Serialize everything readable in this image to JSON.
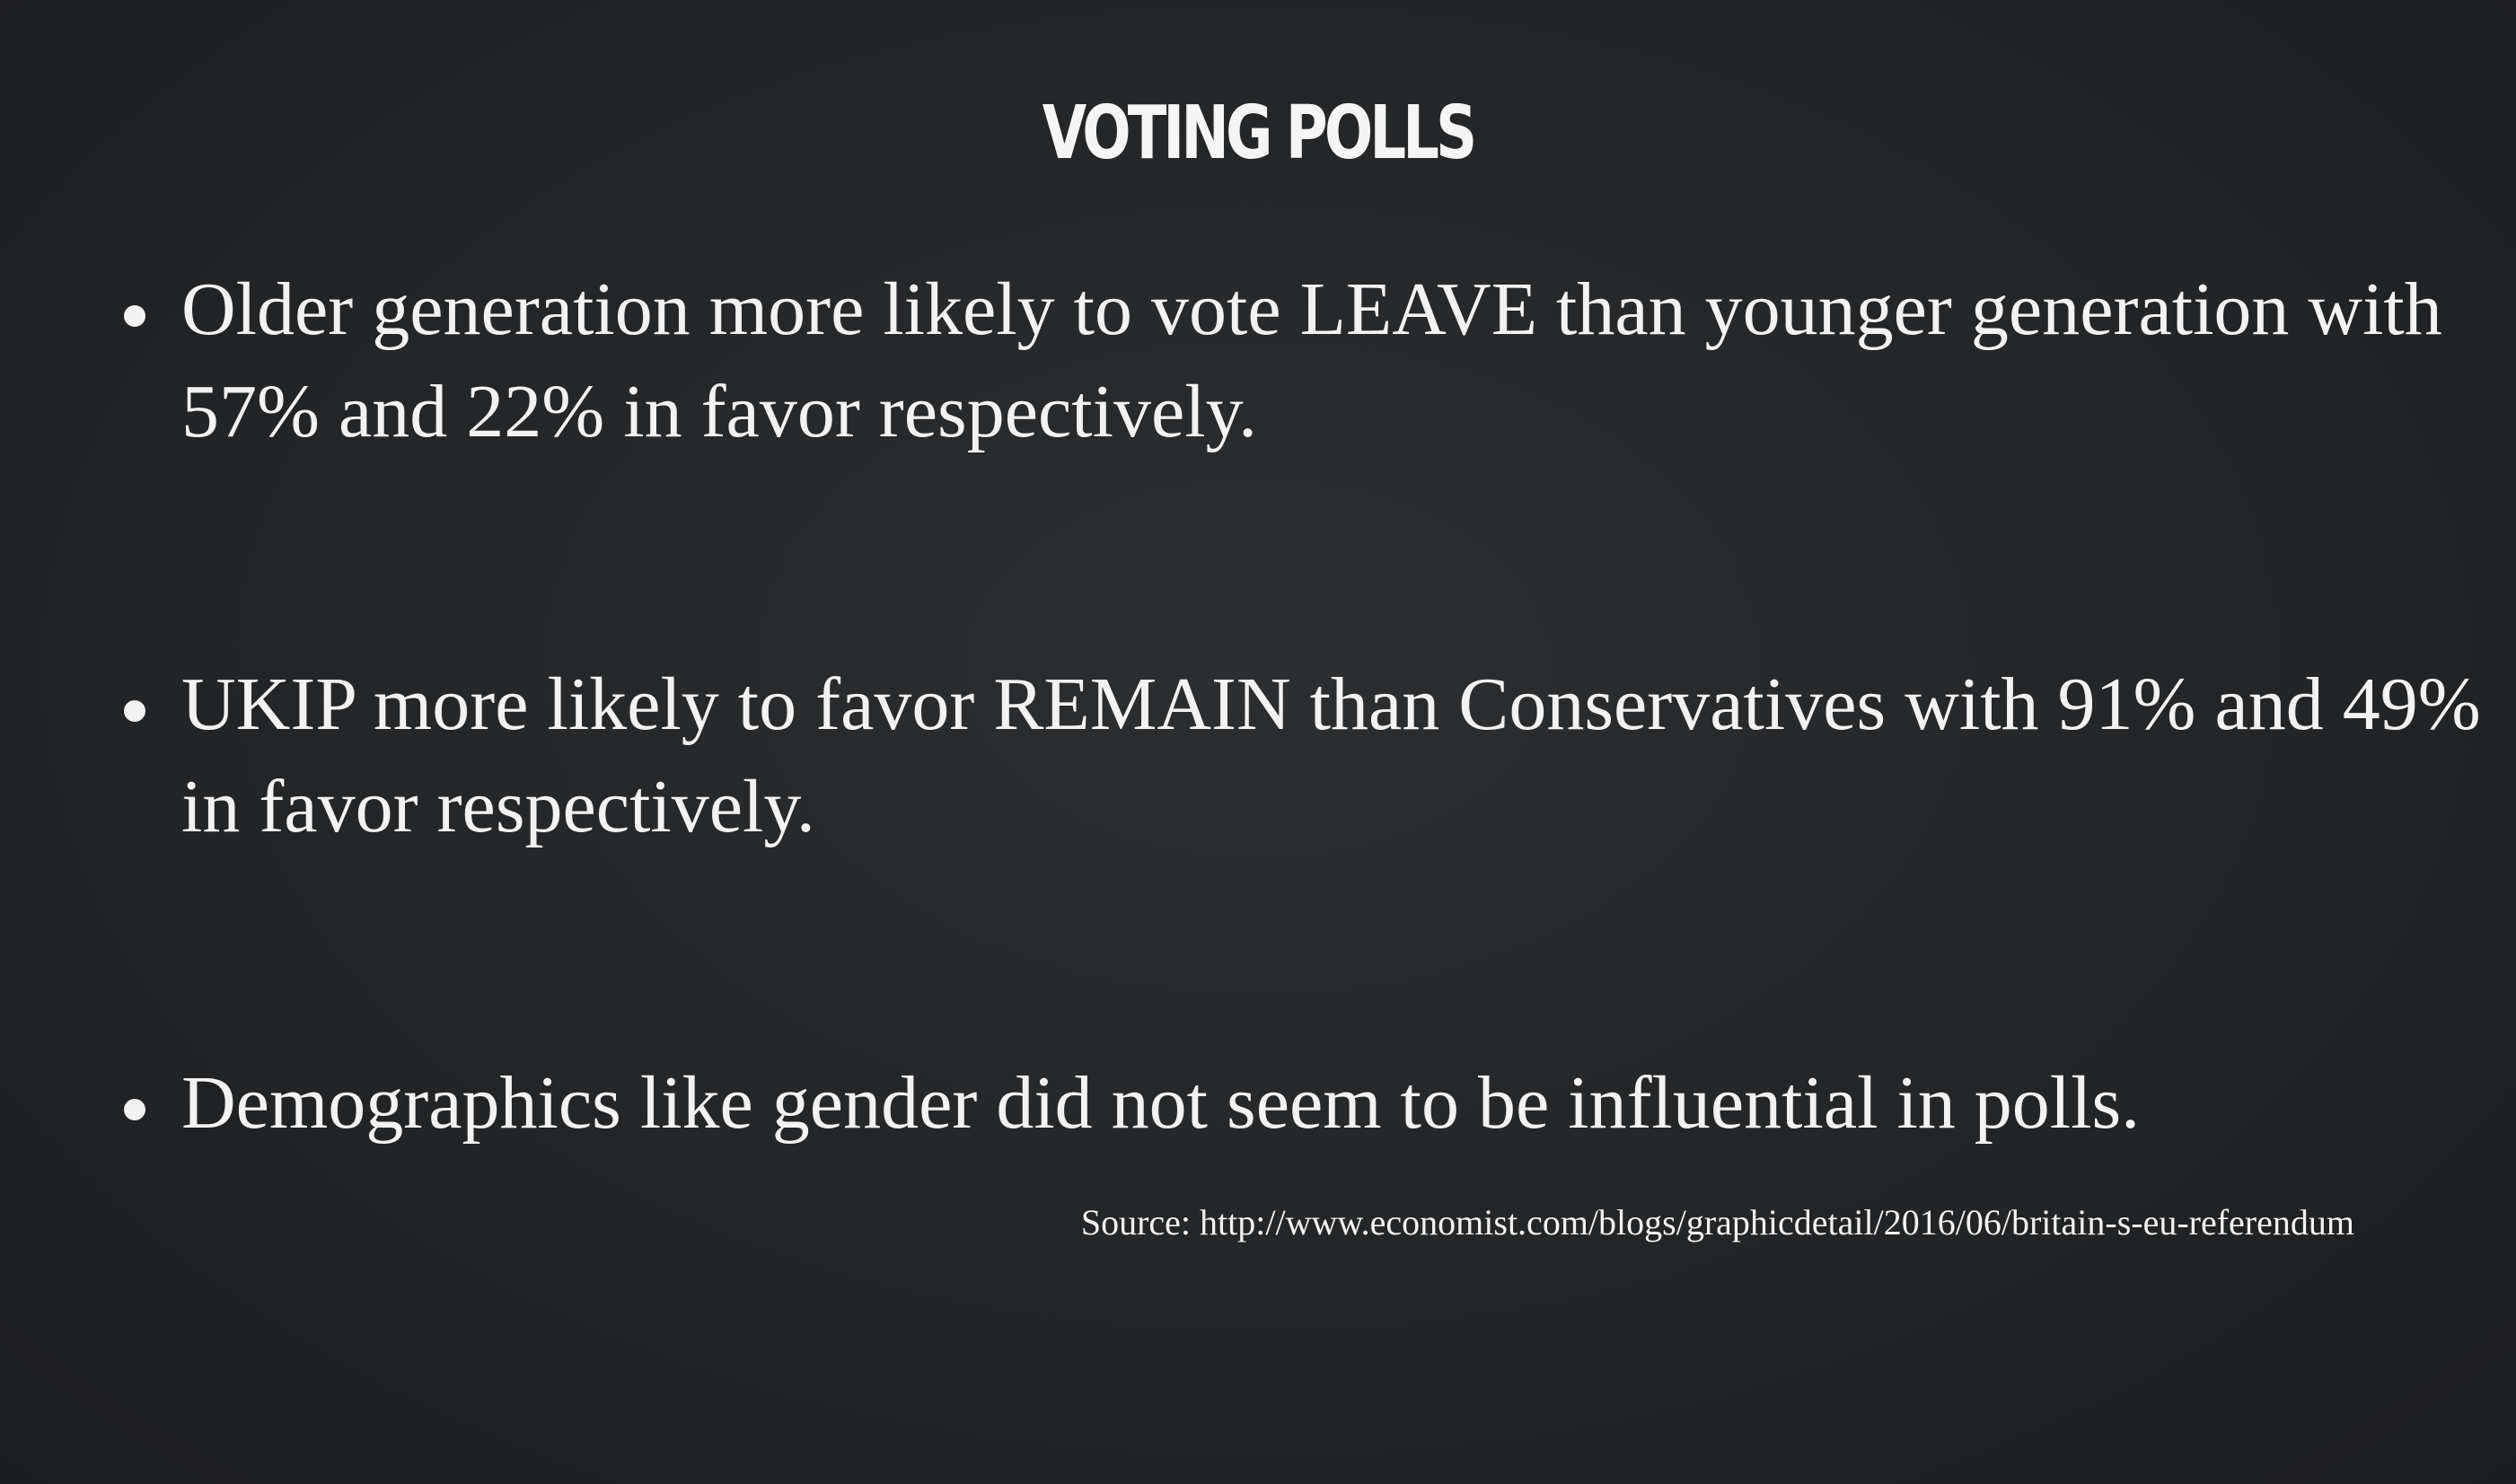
{
  "slide": {
    "title": "VOTING POLLS",
    "bullets": [
      "Older generation more likely to vote LEAVE than younger generation with 57% and 22% in favor respectively.",
      "UKIP more likely to favor REMAIN than Conservatives with 91% and 49% in favor respectively.",
      "Demographics like gender did not seem to be influential in polls."
    ],
    "source": "Source: http://www.economist.com/blogs/graphicdetail/2016/06/britain-s-eu-referendum"
  },
  "colors": {
    "background": "#232527",
    "text": "#f2f2f2"
  }
}
